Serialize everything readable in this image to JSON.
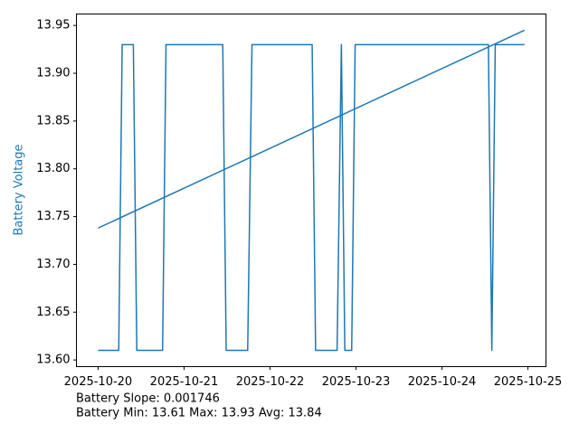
{
  "chart_data": {
    "type": "line",
    "ylabel": "Battery Voltage",
    "ylabel_color": "#1f77b4",
    "annotations": [
      "Battery Slope: 0.001746",
      "Battery Min: 13.61 Max: 13.93 Avg: 13.84"
    ],
    "xlim": [
      -0.252,
      5.21
    ],
    "xticks": [
      {
        "value": 0,
        "label": "2025-10-20"
      },
      {
        "value": 1,
        "label": "2025-10-21"
      },
      {
        "value": 2,
        "label": "2025-10-22"
      },
      {
        "value": 3,
        "label": "2025-10-23"
      },
      {
        "value": 4,
        "label": "2025-10-24"
      },
      {
        "value": 5,
        "label": "2025-10-25"
      }
    ],
    "ylim": [
      13.593,
      13.962
    ],
    "yticks": [
      {
        "value": 13.6,
        "label": "13.60"
      },
      13.65,
      {
        "value": 13.7,
        "label": "13.70"
      },
      13.75,
      {
        "value": 13.8,
        "label": "13.80"
      },
      13.85,
      {
        "value": 13.9,
        "label": "13.90"
      },
      13.95
    ],
    "grid": false,
    "series": [
      {
        "color": "#1f77b4",
        "x": [
          0,
          0.24,
          0.28,
          0.41,
          0.45,
          0.75,
          0.79,
          1.45,
          1.49,
          1.74,
          1.79,
          2.49,
          2.53,
          2.78,
          2.83,
          2.87,
          2.95,
          2.99,
          4.54,
          4.58,
          4.62,
          4.96
        ],
        "values": [
          13.61,
          13.61,
          13.93,
          13.93,
          13.61,
          13.61,
          13.93,
          13.93,
          13.61,
          13.61,
          13.93,
          13.93,
          13.61,
          13.61,
          13.93,
          13.61,
          13.61,
          13.93,
          13.93,
          13.61,
          13.93,
          13.93
        ]
      },
      {
        "color": "#1f77b4",
        "x": [
          0,
          4.96
        ],
        "values": [
          13.738,
          13.945
        ]
      }
    ]
  }
}
